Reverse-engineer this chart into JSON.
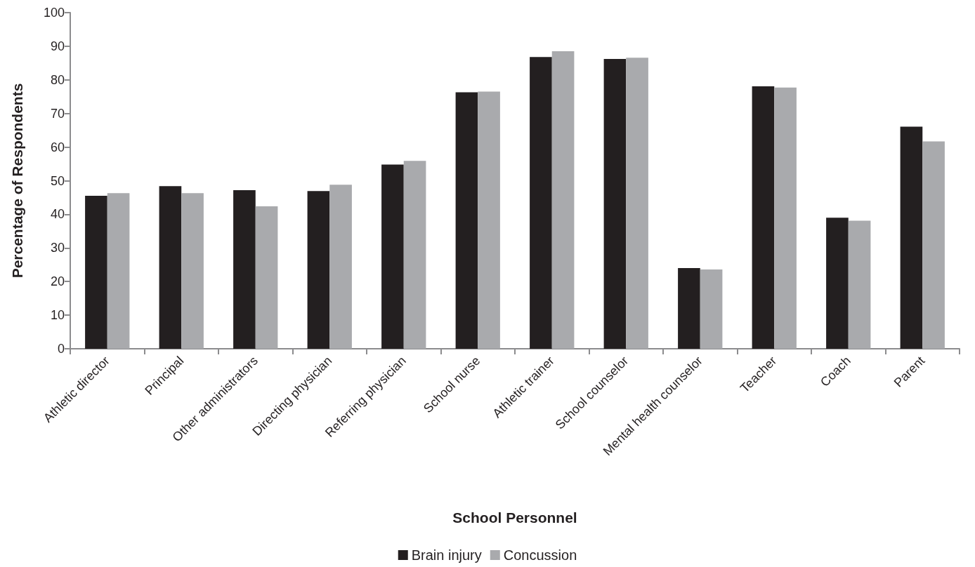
{
  "chart_data": {
    "type": "bar",
    "xlabel": "School Personnel",
    "ylabel": "Percentage of Respondents",
    "categories": [
      "Athletic director",
      "Principal",
      "Other administrators",
      "Directing physician",
      "Referring physician",
      "School nurse",
      "Athletic trainer",
      "School counselor",
      "Mental health counselor",
      "Teacher",
      "Coach",
      "Parent"
    ],
    "series": [
      {
        "name": "Brain injury",
        "color": "#231f20",
        "values": [
          45.5,
          48.4,
          47.2,
          46.9,
          54.8,
          76.3,
          86.8,
          86.2,
          24.0,
          78.1,
          39.0,
          66.1
        ]
      },
      {
        "name": "Concussion",
        "color": "#a9aaad",
        "values": [
          46.3,
          46.3,
          42.4,
          48.8,
          55.9,
          76.5,
          88.5,
          86.6,
          23.6,
          77.7,
          38.1,
          61.7
        ]
      }
    ],
    "ylim": [
      0,
      100
    ],
    "yticks": [
      0,
      10,
      20,
      30,
      40,
      50,
      60,
      70,
      80,
      90,
      100
    ],
    "grid": false,
    "legend": "bottom"
  }
}
